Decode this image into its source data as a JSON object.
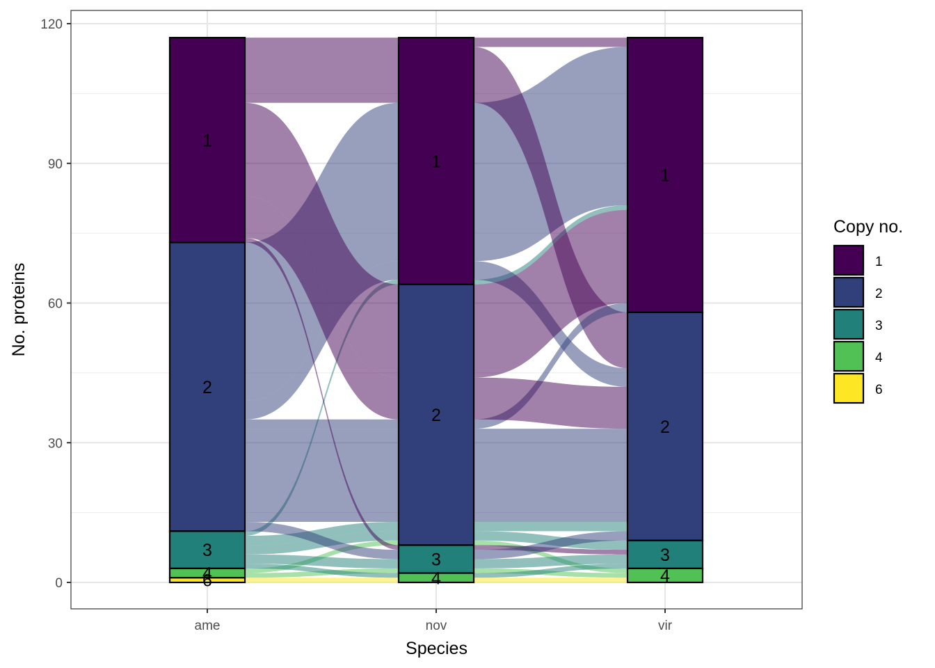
{
  "chart_data": {
    "type": "alluvial",
    "title": "",
    "xlabel": "Species",
    "ylabel": "No. proteins",
    "ylim": [
      -6,
      125
    ],
    "y_ticks": [
      0,
      30,
      60,
      90,
      120
    ],
    "y_tick_labels": [
      "0",
      "30",
      "60",
      "90",
      "120"
    ],
    "grid": true,
    "categories": [
      "ame",
      "nov",
      "vir"
    ],
    "legend": {
      "title": "Copy no.",
      "placement": "right",
      "entries": [
        {
          "label": "1",
          "color": "#440154"
        },
        {
          "label": "2",
          "color": "#31407A"
        },
        {
          "label": "3",
          "color": "#21807A"
        },
        {
          "label": "4",
          "color": "#52C155"
        },
        {
          "label": "6",
          "color": "#FDE725"
        }
      ]
    },
    "strata": {
      "ame": [
        {
          "copy": "1",
          "count": 44
        },
        {
          "copy": "2",
          "count": 62
        },
        {
          "copy": "3",
          "count": 8
        },
        {
          "copy": "4",
          "count": 2
        },
        {
          "copy": "6",
          "count": 1
        }
      ],
      "nov": [
        {
          "copy": "1",
          "count": 53
        },
        {
          "copy": "2",
          "count": 56
        },
        {
          "copy": "3",
          "count": 6
        },
        {
          "copy": "4",
          "count": 2
        }
      ],
      "vir": [
        {
          "copy": "1",
          "count": 59
        },
        {
          "copy": "2",
          "count": 49
        },
        {
          "copy": "3",
          "count": 6
        },
        {
          "copy": "4",
          "count": 3
        }
      ]
    },
    "alluvia": [
      {
        "path": [
          "1",
          "1",
          "1"
        ],
        "count": 2
      },
      {
        "path": [
          "2",
          "1",
          "1"
        ],
        "count": 34
      },
      {
        "path": [
          "3",
          "1",
          "1"
        ],
        "count": 1
      },
      {
        "path": [
          "1",
          "1",
          "2"
        ],
        "count": 12
      },
      {
        "path": [
          "2",
          "1",
          "2"
        ],
        "count": 4
      },
      {
        "path": [
          "1",
          "2",
          "1"
        ],
        "count": 20
      },
      {
        "path": [
          "2",
          "2",
          "1"
        ],
        "count": 2
      },
      {
        "path": [
          "1",
          "2",
          "2"
        ],
        "count": 9
      },
      {
        "path": [
          "2",
          "2",
          "2"
        ],
        "count": 20
      },
      {
        "path": [
          "3",
          "2",
          "2"
        ],
        "count": 2
      },
      {
        "path": [
          "3",
          "2",
          "3"
        ],
        "count": 2
      },
      {
        "path": [
          "4",
          "2",
          "4"
        ],
        "count": 1
      },
      {
        "path": [
          "1",
          "3",
          "3"
        ],
        "count": 1
      },
      {
        "path": [
          "2",
          "3",
          "2"
        ],
        "count": 2
      },
      {
        "path": [
          "3",
          "3",
          "3"
        ],
        "count": 2
      },
      {
        "path": [
          "4",
          "3",
          "4"
        ],
        "count": 1
      },
      {
        "path": [
          "3",
          "4",
          "3"
        ],
        "count": 1
      },
      {
        "path": [
          "6",
          "4",
          "4"
        ],
        "count": 1
      }
    ],
    "flow_color_by": "ame",
    "flow_opacity": 0.5
  }
}
